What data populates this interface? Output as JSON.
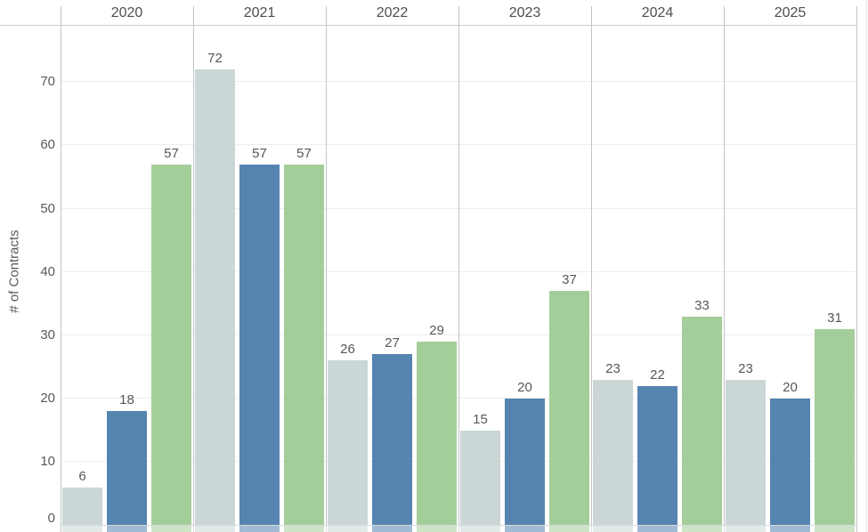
{
  "chart": {
    "y_axis_title": "# of Contracts",
    "y_ticks": [
      0,
      10,
      20,
      30,
      40,
      50,
      60,
      70
    ],
    "colors": {
      "grid": "#ededed",
      "pane_divider": "#c4c4c4",
      "header_rule": "#cbcbcb",
      "zero_line": "#d5dadc",
      "value_label_text": "#575757",
      "year_header_text": "#4e4e4e",
      "tick_text": "#565a5d",
      "background": "#ffffff"
    }
  },
  "chart_data": {
    "type": "bar",
    "title": "",
    "categories": [
      "2020",
      "2021",
      "2022",
      "2023",
      "2024",
      "2025"
    ],
    "series": [
      {
        "name": "series-1-light-gray",
        "color": "#cbd7d7",
        "values": [
          6,
          72,
          26,
          15,
          23,
          23
        ]
      },
      {
        "name": "series-2-blue",
        "color": "#5584b1",
        "values": [
          18,
          57,
          27,
          20,
          22,
          20
        ]
      },
      {
        "name": "series-3-green",
        "color": "#a4ce99",
        "values": [
          57,
          57,
          29,
          37,
          33,
          31
        ]
      }
    ],
    "xlabel": "",
    "ylabel": "# of Contracts",
    "ylim": [
      0,
      79
    ],
    "grid": true,
    "legend": false,
    "bar_labels": true
  }
}
